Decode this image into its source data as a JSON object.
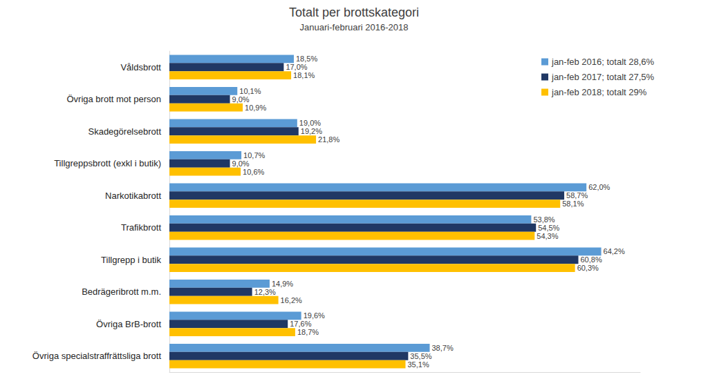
{
  "chart_data": {
    "type": "bar",
    "title": "Totalt per brottskategori",
    "subtitle": "Januari-februari 2016-2018",
    "orientation": "horizontal",
    "categories": [
      "Våldsbrott",
      "Övriga brott mot person",
      "Skadegörelsebrott",
      "Tillgreppsbrott (exkl i butik)",
      "Narkotikabrott",
      "Trafikbrott",
      "Tillgrepp i butik",
      "Bedrägeribrott m.m.",
      "Övriga BrB-brott",
      "Övriga specialstraffrättsliga brott"
    ],
    "series": [
      {
        "name": "jan-feb 2016; totalt 28,6%",
        "color": "#5b9bd5",
        "values": [
          18.5,
          10.1,
          19.0,
          10.7,
          62.0,
          53.8,
          64.2,
          14.9,
          19.6,
          38.7
        ],
        "value_labels": [
          "18,5%",
          "10,1%",
          "19,0%",
          "10,7%",
          "62,0%",
          "53,8%",
          "64,2%",
          "14,9%",
          "19,6%",
          "38,7%"
        ]
      },
      {
        "name": "jan-feb 2017; totalt 27,5%",
        "color": "#203864",
        "values": [
          17.0,
          9.0,
          19.2,
          9.0,
          58.7,
          54.5,
          60.8,
          12.3,
          17.6,
          35.5
        ],
        "value_labels": [
          "17,0%",
          "9,0%",
          "19,2%",
          "9,0%",
          "58,7%",
          "54,5%",
          "60,8%",
          "12,3%",
          "17,6%",
          "35,5%"
        ]
      },
      {
        "name": "jan-feb 2018; totalt 29%",
        "color": "#ffc000",
        "values": [
          18.1,
          10.9,
          21.8,
          10.6,
          58.1,
          54.3,
          60.3,
          16.2,
          18.7,
          35.1
        ],
        "value_labels": [
          "18,1%",
          "10,9%",
          "21,8%",
          "10,6%",
          "58,1%",
          "54,3%",
          "60,3%",
          "16,2%",
          "18,7%",
          "35,1%"
        ]
      }
    ],
    "xlim": [
      0,
      70
    ],
    "xticks": [],
    "grid": false,
    "legend": "top-right",
    "data_labels": true,
    "tick_labels": "y"
  }
}
